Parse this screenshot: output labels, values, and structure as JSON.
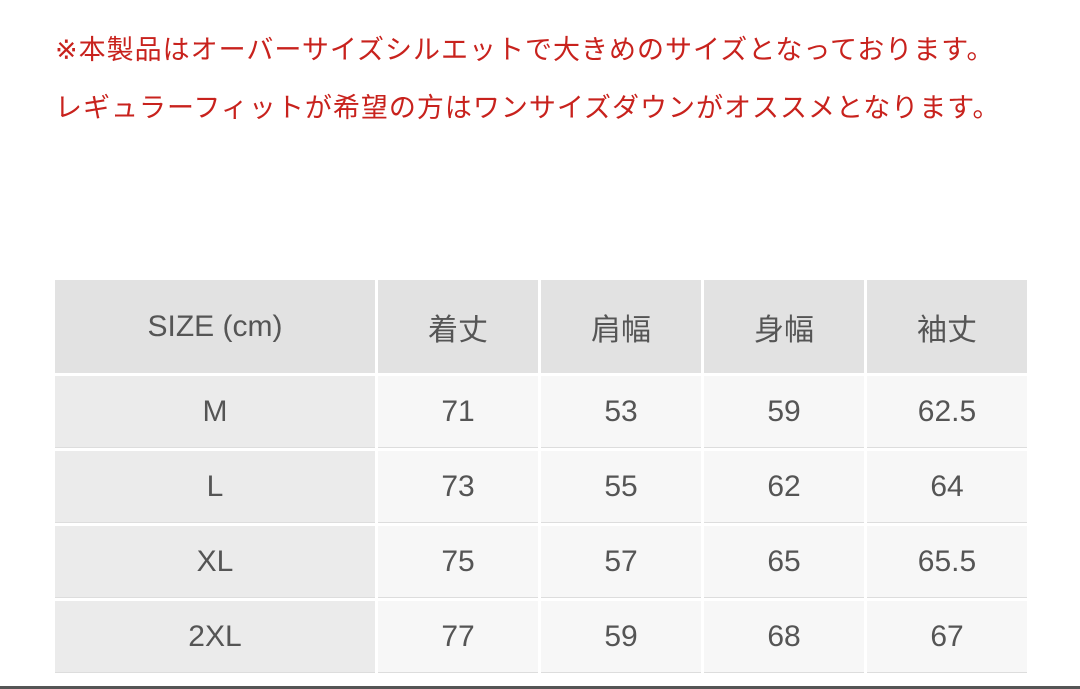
{
  "notice": {
    "lines": [
      "※本製品はオーバーサイズシルエットで大きめのサイズとなっております。",
      "レギュラーフィットが希望の方はワンサイズダウンがオススメとなります。"
    ],
    "color": "#c8221d"
  },
  "size_table": {
    "headers": [
      "SIZE (cm)",
      "着丈",
      "肩幅",
      "身幅",
      "袖丈"
    ],
    "rows": [
      [
        "M",
        "71",
        "53",
        "59",
        "62.5"
      ],
      [
        "L",
        "73",
        "55",
        "62",
        "64"
      ],
      [
        "XL",
        "75",
        "57",
        "65",
        "65.5"
      ],
      [
        "2XL",
        "77",
        "59",
        "68",
        "67"
      ]
    ]
  }
}
